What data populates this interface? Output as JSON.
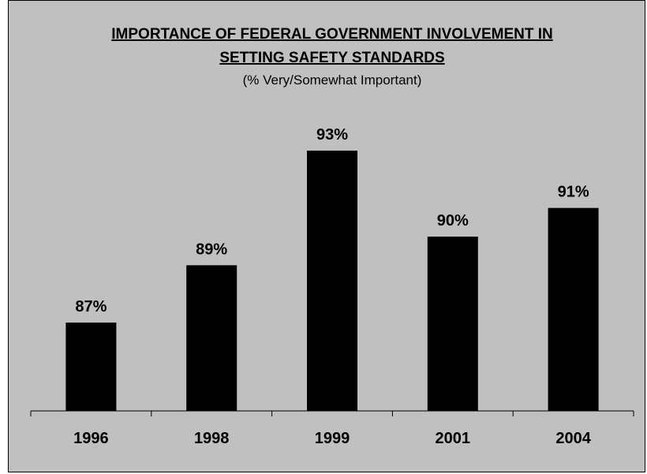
{
  "chart_data": {
    "type": "bar",
    "title": "IMPORTANCE OF FEDERAL GOVERNMENT INVOLVEMENT IN SETTING SAFETY STANDARDS",
    "title_lines": [
      "IMPORTANCE OF FEDERAL GOVERNMENT INVOLVEMENT IN",
      "SETTING SAFETY STANDARDS"
    ],
    "subtitle": "(% Very/Somewhat Important)",
    "categories": [
      "1996",
      "1998",
      "1999",
      "2001",
      "2004"
    ],
    "values": [
      87,
      89,
      93,
      90,
      91
    ],
    "data_labels": [
      "87%",
      "89%",
      "93%",
      "90%",
      "91%"
    ],
    "xlabel": "",
    "ylabel": "",
    "grid": false,
    "bar_color": "#000000",
    "background_color": "#c0c0c0"
  }
}
